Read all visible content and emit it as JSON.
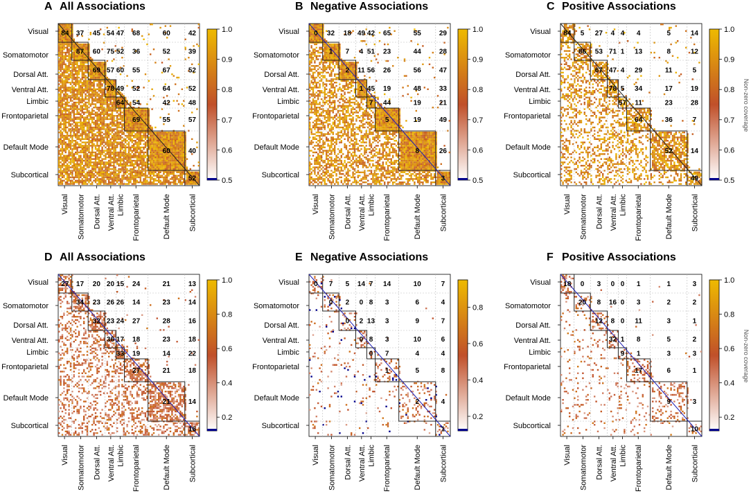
{
  "colors": {
    "high": "#EEBA00",
    "mid": "#C0502A",
    "low": "#FFFFFF",
    "diag_line": "#1E1EB4",
    "floor": "#00008B",
    "grid": "#BBBBBB"
  },
  "networks": [
    "Visual",
    "Somatomotor",
    "Dorsal Att.",
    "Ventral Att.",
    "Limbic",
    "Frontoparietal",
    "Default Mode",
    "Subcortical"
  ],
  "chart_data": [
    {
      "type": "heatmap",
      "letter": "A",
      "title": "All Associations",
      "colorbar": {
        "ticks": [
          "1.0",
          "0.9",
          "0.8",
          "0.7",
          "0.6",
          "0.5"
        ],
        "min": 0.5,
        "max": 1.0,
        "label": ""
      },
      "density": 0.78,
      "values": [
        [
          "84",
          "37",
          "45",
          "54",
          "47",
          "68",
          "60",
          "42"
        ],
        [
          null,
          "87",
          "60",
          "75",
          "52",
          "36",
          "52",
          "39"
        ],
        [
          null,
          null,
          "69",
          "57",
          "60",
          "55",
          "67",
          "52"
        ],
        [
          null,
          null,
          null,
          "78",
          "49",
          "52",
          "64",
          "52"
        ],
        [
          null,
          null,
          null,
          null,
          "64",
          "54",
          "42",
          "48"
        ],
        [
          null,
          null,
          null,
          null,
          null,
          "69",
          "55",
          "57"
        ],
        [
          null,
          null,
          null,
          null,
          null,
          null,
          "60",
          "40"
        ],
        [
          null,
          null,
          null,
          null,
          null,
          null,
          null,
          "52"
        ]
      ]
    },
    {
      "type": "heatmap",
      "letter": "B",
      "title": "Negative Associations",
      "colorbar": {
        "ticks": [
          "1.0",
          "0.9",
          "0.8",
          "0.7",
          "0.6",
          "0.5"
        ],
        "min": 0.5,
        "max": 1.0,
        "label": ""
      },
      "density": 0.55,
      "values": [
        [
          "0",
          "32",
          "18",
          "49",
          "42",
          "65",
          "55",
          "29"
        ],
        [
          null,
          "1",
          "7",
          "4",
          "51",
          "23",
          "44",
          "28"
        ],
        [
          null,
          null,
          "2",
          "11",
          "56",
          "26",
          "56",
          "47"
        ],
        [
          null,
          null,
          null,
          "1",
          "45",
          "19",
          "48",
          "33"
        ],
        [
          null,
          null,
          null,
          null,
          "7",
          "44",
          "19",
          "21"
        ],
        [
          null,
          null,
          null,
          null,
          null,
          "5",
          "19",
          "49"
        ],
        [
          null,
          null,
          null,
          null,
          null,
          null,
          "8",
          "26"
        ],
        [
          null,
          null,
          null,
          null,
          null,
          null,
          null,
          "3"
        ]
      ]
    },
    {
      "type": "heatmap",
      "letter": "C",
      "title": "Positive Associations",
      "colorbar": {
        "ticks": [
          "1.0",
          "0.9",
          "0.8",
          "0.7",
          "0.6",
          "0.5"
        ],
        "min": 0.5,
        "max": 1.0,
        "label": "Non-zero coverage"
      },
      "density": 0.35,
      "values": [
        [
          "84",
          "5",
          "27",
          "4",
          "4",
          "4",
          "5",
          "14"
        ],
        [
          null,
          "86",
          "53",
          "71",
          "1",
          "13",
          "8",
          "12"
        ],
        [
          null,
          null,
          "67",
          "47",
          "4",
          "29",
          "11",
          "5"
        ],
        [
          null,
          null,
          null,
          "78",
          "5",
          "34",
          "17",
          "19"
        ],
        [
          null,
          null,
          null,
          null,
          "57",
          "11",
          "23",
          "28"
        ],
        [
          null,
          null,
          null,
          null,
          null,
          "64",
          "36",
          "7"
        ],
        [
          null,
          null,
          null,
          null,
          null,
          null,
          "52",
          "14"
        ],
        [
          null,
          null,
          null,
          null,
          null,
          null,
          null,
          "49"
        ]
      ]
    },
    {
      "type": "heatmap",
      "letter": "D",
      "title": "All Associations",
      "colorbar": {
        "ticks": [
          "1.0",
          "0.8",
          "0.6",
          "0.4",
          "0.2"
        ],
        "min": 0.12,
        "max": 1.0,
        "label": ""
      },
      "density": 0.3,
      "values": [
        [
          "27",
          "17",
          "20",
          "20",
          "15",
          "24",
          "21",
          "13"
        ],
        [
          null,
          "34",
          "23",
          "26",
          "26",
          "14",
          "23",
          "14"
        ],
        [
          null,
          null,
          "32",
          "23",
          "24",
          "27",
          "28",
          "16"
        ],
        [
          null,
          null,
          null,
          "36",
          "17",
          "18",
          "23",
          "18"
        ],
        [
          null,
          null,
          null,
          null,
          "33",
          "19",
          "14",
          "22"
        ],
        [
          null,
          null,
          null,
          null,
          null,
          "27",
          "21",
          "18"
        ],
        [
          null,
          null,
          null,
          null,
          null,
          null,
          "21",
          "14"
        ],
        [
          null,
          null,
          null,
          null,
          null,
          null,
          null,
          "16"
        ]
      ]
    },
    {
      "type": "heatmap",
      "letter": "E",
      "title": "Negative Associations",
      "colorbar": {
        "ticks": [
          "0.8",
          "0.6",
          "0.4",
          "0.2"
        ],
        "min": 0.12,
        "max": 0.95,
        "label": ""
      },
      "density": 0.06,
      "values": [
        [
          "0",
          "7",
          "5",
          "14",
          "7",
          "14",
          "10",
          "7"
        ],
        [
          null,
          "0",
          "2",
          "0",
          "8",
          "3",
          "6",
          "4"
        ],
        [
          null,
          null,
          "0",
          "2",
          "13",
          "3",
          "9",
          "7"
        ],
        [
          null,
          null,
          null,
          "0",
          "8",
          "3",
          "10",
          "6"
        ],
        [
          null,
          null,
          null,
          null,
          "0",
          "7",
          "4",
          "4"
        ],
        [
          null,
          null,
          null,
          null,
          null,
          "1",
          "5",
          "8"
        ],
        [
          null,
          null,
          null,
          null,
          null,
          null,
          "2",
          "4"
        ],
        [
          null,
          null,
          null,
          null,
          null,
          null,
          null,
          "1"
        ]
      ]
    },
    {
      "type": "heatmap",
      "letter": "F",
      "title": "Positive Associations",
      "colorbar": {
        "ticks": [
          "1.0",
          "0.8",
          "0.6",
          "0.4",
          "0.2"
        ],
        "min": 0.12,
        "max": 1.0,
        "label": "Non-zero coverage"
      },
      "density": 0.08,
      "values": [
        [
          "18",
          "0",
          "3",
          "0",
          "0",
          "1",
          "1",
          "3"
        ],
        [
          null,
          "20",
          "8",
          "16",
          "0",
          "3",
          "2",
          "2"
        ],
        [
          null,
          null,
          "12",
          "8",
          "0",
          "11",
          "3",
          "1"
        ],
        [
          null,
          null,
          null,
          "32",
          "1",
          "8",
          "5",
          "2"
        ],
        [
          null,
          null,
          null,
          null,
          "9",
          "1",
          "3",
          "3"
        ],
        [
          null,
          null,
          null,
          null,
          null,
          "17",
          "6",
          "1"
        ],
        [
          null,
          null,
          null,
          null,
          null,
          null,
          "9",
          "3"
        ],
        [
          null,
          null,
          null,
          null,
          null,
          null,
          null,
          "10"
        ]
      ]
    }
  ]
}
